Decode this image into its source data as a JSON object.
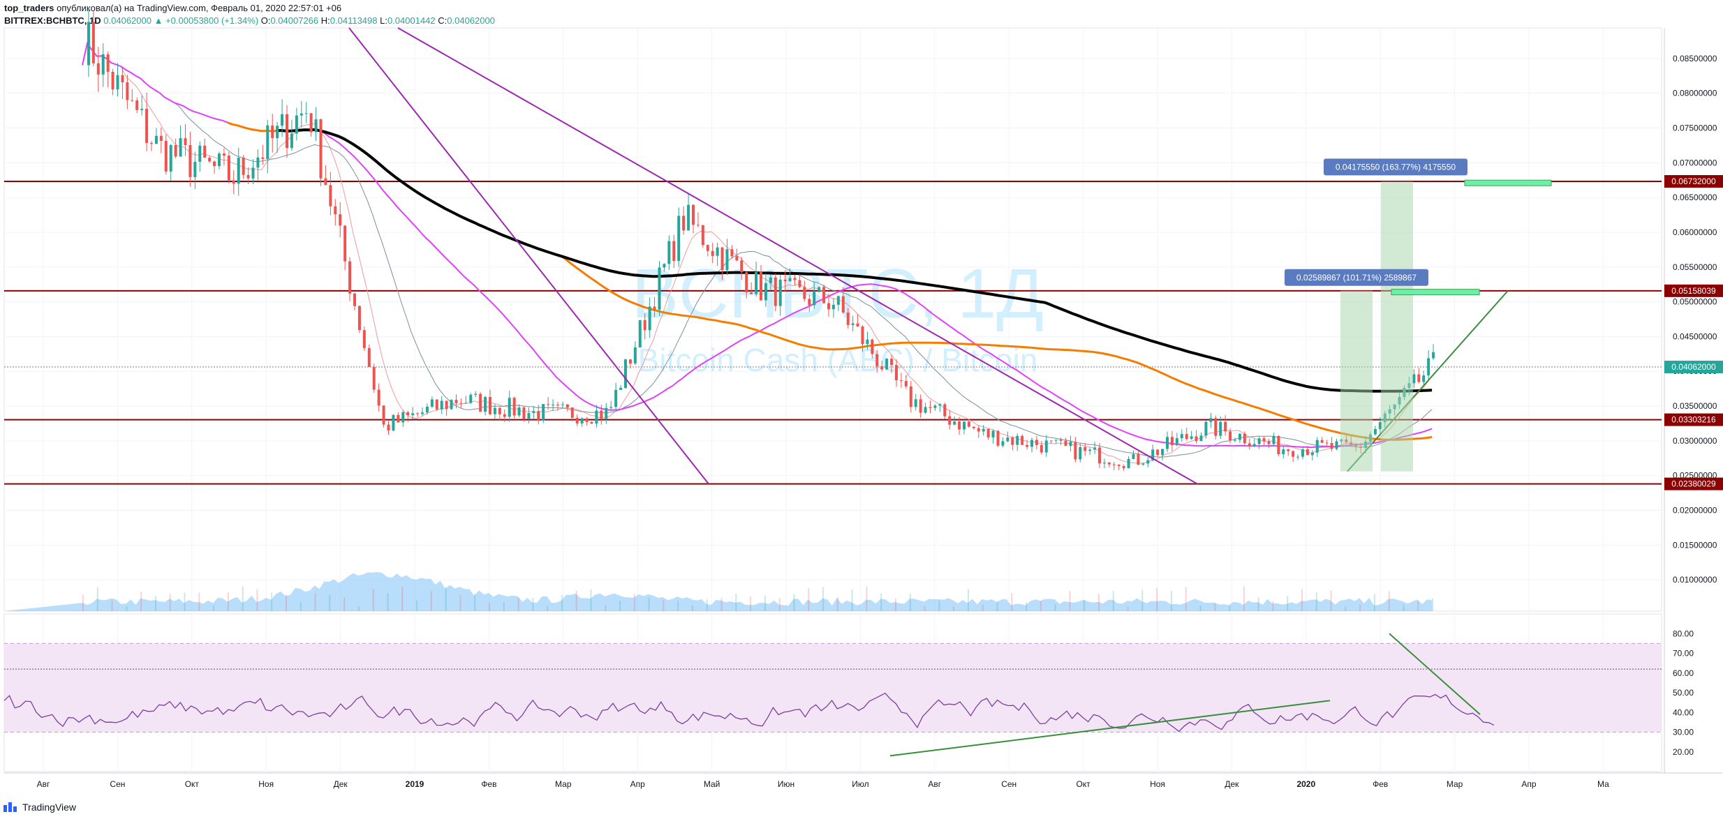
{
  "header": {
    "author": "top_traders",
    "published_text": "опубликовал(а) на TradingView.com, Февраль 01, 2020 22:57:01 +06",
    "symbol": "BITTREX:BCHBTC, 1D",
    "last": "0.04062000",
    "change": "▲ +0.00053800 (+1.34%)",
    "o_label": "O:",
    "o_value": "0.04007266",
    "h_label": "H:",
    "h_value": "0.04113498",
    "l_label": "L:",
    "l_value": "0.04001442",
    "c_label": "C:",
    "c_value": "0.04062000"
  },
  "watermark": {
    "line1": "BCHBTC, 1Д",
    "line2": "Bitcoin Cash (ABC) / Bitcoin"
  },
  "price_axis": {
    "ticks": [
      "0.08500000",
      "0.08000000",
      "0.07500000",
      "0.07000000",
      "0.06500000",
      "0.06000000",
      "0.05500000",
      "0.05000000",
      "0.04500000",
      "0.04000000",
      "0.03500000",
      "0.03000000",
      "0.02500000",
      "0.02000000",
      "0.01500000",
      "0.01000000"
    ],
    "tick_values": [
      0.085,
      0.08,
      0.075,
      0.07,
      0.065,
      0.06,
      0.055,
      0.05,
      0.045,
      0.04,
      0.035,
      0.03,
      0.025,
      0.02,
      0.015,
      0.01
    ],
    "range": [
      0.0055,
      0.0894
    ],
    "price_labels": [
      {
        "text": "0.06732000",
        "value": 0.06732,
        "color": "#8b0000"
      },
      {
        "text": "0.05158039",
        "value": 0.05158039,
        "color": "#8b0000"
      },
      {
        "text": "0.04062000",
        "value": 0.04062,
        "color": "#26a69a"
      },
      {
        "text": "0.03303216",
        "value": 0.03303216,
        "color": "#8b0000"
      },
      {
        "text": "0.02380029",
        "value": 0.02380029,
        "color": "#8b0000"
      }
    ]
  },
  "rsi_axis": {
    "ticks": [
      "80.00",
      "70.00",
      "60.00",
      "50.00",
      "40.00",
      "30.00",
      "20.00"
    ],
    "tick_values": [
      80,
      70,
      60,
      50,
      40,
      30,
      20
    ],
    "range": [
      10,
      90
    ],
    "band": [
      30,
      75
    ],
    "level": 62
  },
  "time_axis": {
    "labels": [
      "Авг",
      "Сен",
      "Окт",
      "Ноя",
      "Дек",
      "2019",
      "Фев",
      "Мар",
      "Апр",
      "Май",
      "Июн",
      "Июл",
      "Авг",
      "Сен",
      "Окт",
      "Ноя",
      "Дек",
      "2020",
      "Фев",
      "Мар",
      "Апр",
      "Ма"
    ],
    "bold": [
      "2019",
      "2020"
    ]
  },
  "measurements": [
    {
      "text": "0.02589867 (101.71%) 2589867"
    },
    {
      "text": "0.04175550 (163.77%) 4175550"
    }
  ],
  "footer": {
    "brand": "TradingView"
  },
  "colors": {
    "up": "#26a69a",
    "down": "#ef5350",
    "sma_black": "#000000",
    "ema_orange": "#f57c00",
    "ma_magenta": "#e040fb",
    "trend_purple": "#9c27b0",
    "level_red": "#8b0000",
    "rsi_line": "#7b3fa0",
    "rsi_band": "#f3e5f5",
    "volume": "#64b5f6",
    "trend_green": "#388e3c"
  },
  "chart_data": {
    "type": "candlestick",
    "title": "BITTREX:BCHBTC, 1D",
    "x": [
      "Авг",
      "Сен",
      "Окт",
      "Ноя",
      "Дек",
      "2019",
      "Фев",
      "Мар",
      "Апр",
      "Май",
      "Июн",
      "Июл",
      "Авг",
      "Сен",
      "Окт",
      "Ноя",
      "Дек",
      "2020",
      "Фев"
    ],
    "close_approx": [
      0.088,
      0.072,
      0.068,
      0.078,
      0.032,
      0.036,
      0.034,
      0.034,
      0.062,
      0.052,
      0.05,
      0.036,
      0.031,
      0.029,
      0.027,
      0.032,
      0.029,
      0.029,
      0.041
    ],
    "horizontal_levels": [
      0.06732,
      0.05158039,
      0.03303216,
      0.02380029
    ],
    "ylim": [
      0.0055,
      0.0894
    ],
    "rsi_range": [
      10,
      90
    ]
  }
}
